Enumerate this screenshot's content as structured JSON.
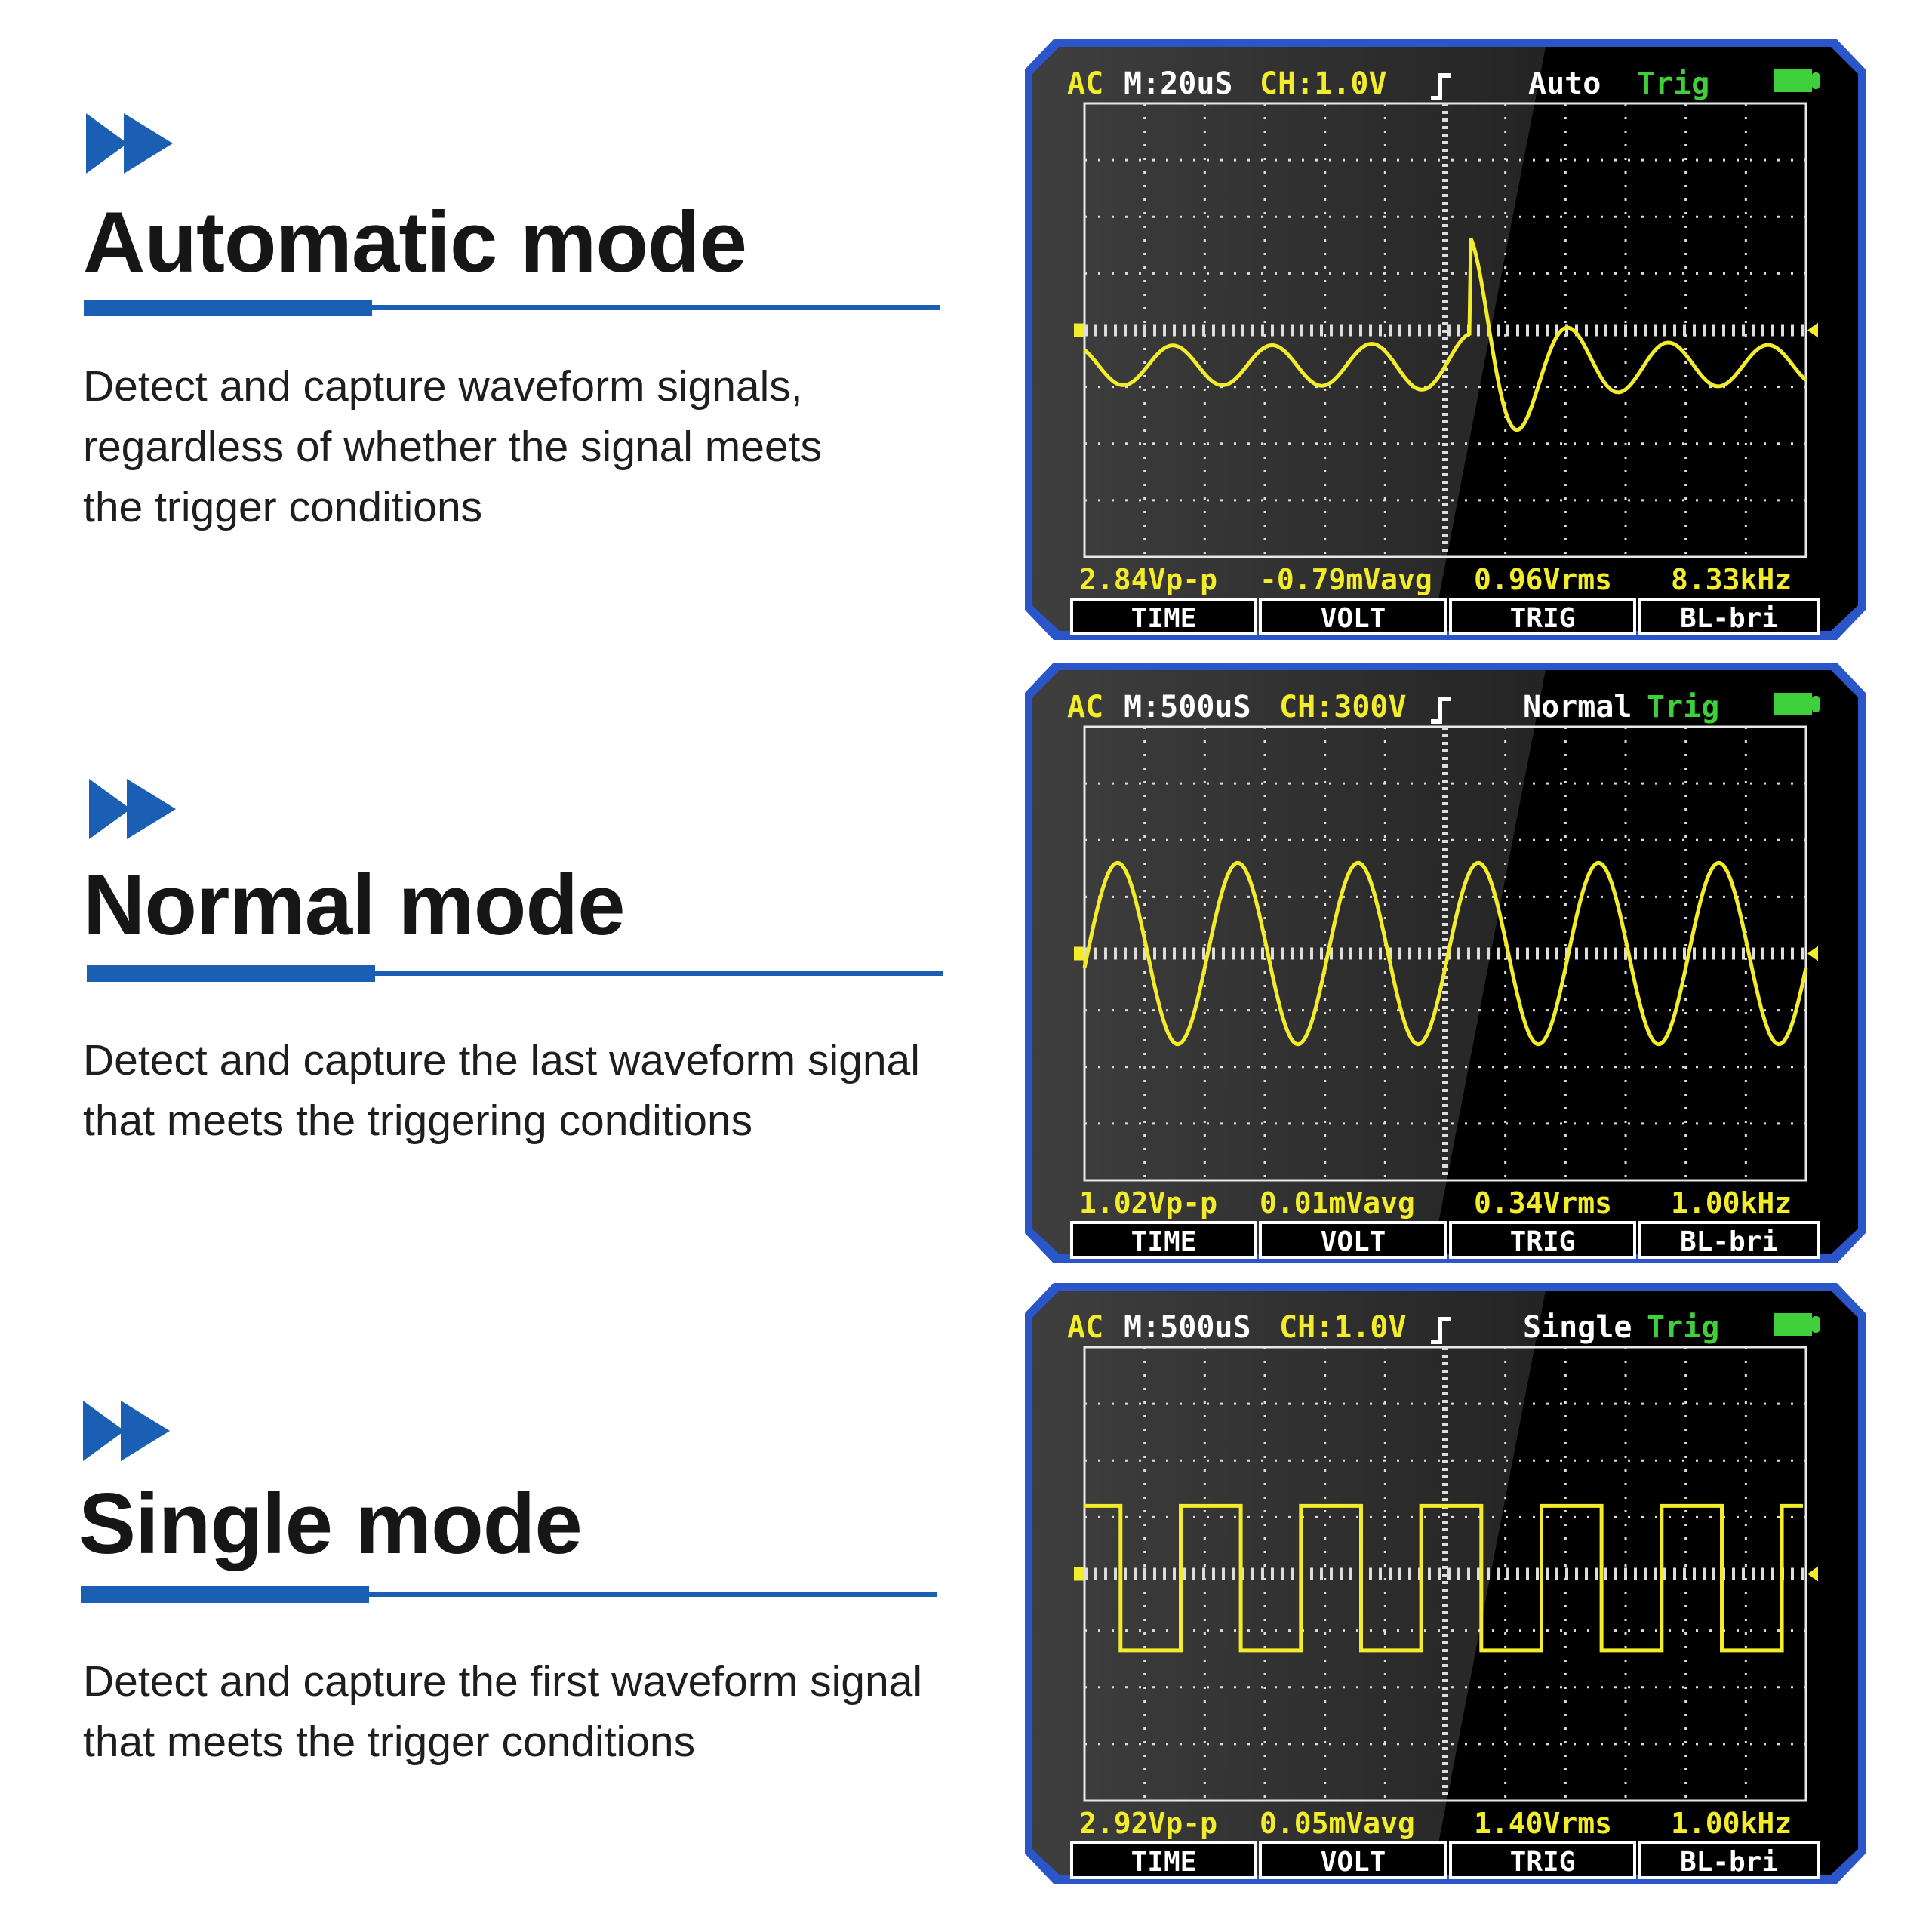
{
  "colors": {
    "accent_blue": "#1a5fb4",
    "bezel_blue": "#2b56c9",
    "trace_yellow": "#f2ec2a",
    "label_green": "#3ecf3a",
    "screen_black": "#000000"
  },
  "sections": [
    {
      "icon": "double-chevron-right-icon",
      "title": "Automatic mode",
      "lines": [
        "Detect and capture waveform signals,",
        "regardless of whether the signal meets",
        "the trigger conditions"
      ]
    },
    {
      "icon": "double-chevron-right-icon",
      "title": "Normal mode",
      "lines": [
        "Detect and capture the last waveform signal",
        "that meets the triggering conditions"
      ]
    },
    {
      "icon": "double-chevron-right-icon",
      "title": "Single mode",
      "lines": [
        "Detect and capture the first waveform signal",
        "that meets the trigger conditions"
      ]
    }
  ],
  "screens": [
    {
      "coupling": "AC",
      "timebase": "M:20uS",
      "channel": "CH:1.0V",
      "trigger_edge_icon": "rising-edge-icon",
      "mode": "Auto",
      "trig": "Trig",
      "battery_icon": "battery-icon",
      "waveform": "damped-burst",
      "measurements": [
        "2.84Vp-p",
        "-0.79mVavg",
        "0.96Vrms",
        "8.33kHz"
      ],
      "buttons": [
        "TIME",
        "VOLT",
        "TRIG",
        "BL-bri"
      ]
    },
    {
      "coupling": "AC",
      "timebase": "M:500uS",
      "channel": "CH:300V",
      "trigger_edge_icon": "rising-edge-icon",
      "mode": "Normal",
      "trig": "Trig",
      "battery_icon": "battery-icon",
      "waveform": "sine",
      "measurements": [
        "1.02Vp-p",
        "0.01mVavg",
        "0.34Vrms",
        "1.00kHz"
      ],
      "buttons": [
        "TIME",
        "VOLT",
        "TRIG",
        "BL-bri"
      ]
    },
    {
      "coupling": "AC",
      "timebase": "M:500uS",
      "channel": "CH:1.0V",
      "trigger_edge_icon": "rising-edge-icon",
      "mode": "Single",
      "trig": "Trig",
      "battery_icon": "battery-icon",
      "waveform": "square",
      "measurements": [
        "2.92Vp-p",
        "0.05mVavg",
        "1.40Vrms",
        "1.00kHz"
      ],
      "buttons": [
        "TIME",
        "VOLT",
        "TRIG",
        "BL-bri"
      ]
    }
  ]
}
